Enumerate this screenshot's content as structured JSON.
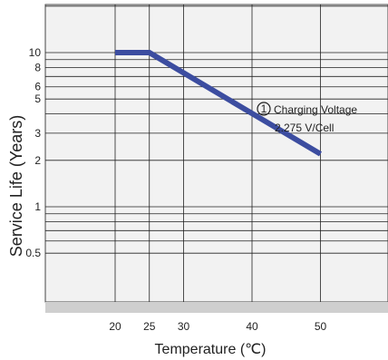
{
  "chart_data": {
    "type": "line",
    "xlabel": "Temperature (℃)",
    "ylabel": "Service Life (Years)",
    "xlim": [
      10,
      60
    ],
    "ylim": [
      0.45,
      20
    ],
    "y_scale": "log",
    "x_ticks": [
      20,
      25,
      30,
      40,
      50
    ],
    "y_ticks": [
      {
        "value": 0.5,
        "label": "0.5"
      },
      {
        "value": 1,
        "label": "1"
      },
      {
        "value": 2,
        "label": "2"
      },
      {
        "value": 3,
        "label": "3"
      },
      {
        "value": 5,
        "label": "5"
      },
      {
        "value": 6,
        "label": "6"
      },
      {
        "value": 8,
        "label": "8"
      },
      {
        "value": 10,
        "label": "10"
      }
    ],
    "grid": true,
    "series": [
      {
        "x": [
          20,
          25,
          50
        ],
        "y": [
          10,
          10,
          2.2
        ]
      }
    ],
    "annotation": {
      "marker": "1",
      "line1": "Charging Voltage",
      "line2": "2.275 V/Cell"
    },
    "colors": {
      "background": "#f2f2f2",
      "grid": "#222222",
      "line": "#3c4da0",
      "bottom_band": "#cfcfcf"
    }
  }
}
